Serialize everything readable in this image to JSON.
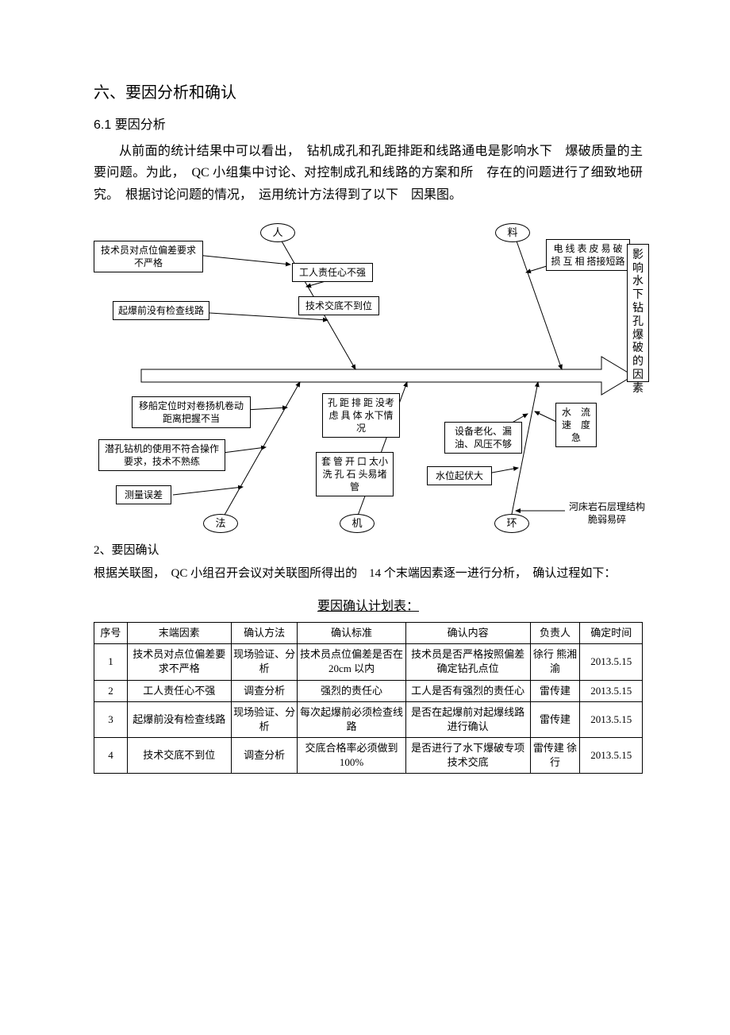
{
  "heading": "六、要因分析和确认",
  "subheading": "6.1 要因分析",
  "paragraph": "从前面的统计结果中可以看出，　钻机成孔和孔距排距和线路通电是影响水下　爆破质量的主要问题。为此，　QC 小组集中讨论、对控制成孔和线路的方案和所　存在的问题进行了细致地研究。　根据讨论问题的情况，　运用统计方法得到了以下　因果图。",
  "diagram": {
    "categories": {
      "ren": "人",
      "liao": "料",
      "fa": "法",
      "ji": "机",
      "huan": "环"
    },
    "result": "影响水下钻孔爆破的因素",
    "boxes": {
      "b1": "技术员对点位偏差要求不严格",
      "b2": "起爆前没有检查线路",
      "b3": "工人责任心不强",
      "b4": "技术交底不到位",
      "b5": "电 线 表 皮 易 破 损 互 相 搭接短路",
      "b6": "移船定位时对卷扬机卷动距离把握不当",
      "b7": "潜孔钻机的使用不符合操作要求，技术不熟练",
      "b8": "测量误差",
      "b9": "孔 距 排 距 没考 虑 具 体 水下情况",
      "b10": "套 管 开 口 太小 洗 孔 石 头易堵管",
      "b11": "设备老化、漏油、风压不够",
      "b12": "水位起伏大",
      "b13": "水　流速　度急",
      "b14": "河床岩石层理结构脆弱易碎"
    }
  },
  "sub2_num": "2、",
  "sub2_txt": "要因确认",
  "para2": "根据关联图，　QC 小组召开会议对关联图所得出的　14 个末端因素逐一进行分析，　确认过程如下：",
  "table_title": "要因确认计划表：",
  "table": {
    "headers": [
      "序号",
      "末端因素",
      "确认方法",
      "确认标准",
      "确认内容",
      "负责人",
      "确定时间"
    ],
    "rows": [
      {
        "c0": "1",
        "c1": "技术员对点位偏差要　求不严格",
        "c2": "现场验证、分析",
        "c3": "技术员点位偏差是否在　20cm 以内",
        "c4": "技术员是否严格按照偏差确定钻孔点位",
        "c5": "徐行 熊湘渝",
        "c6": "2013.5.15"
      },
      {
        "c0": "2",
        "c1": "工人责任心不强",
        "c2": "调查分析",
        "c3": "强烈的责任心",
        "c4": "工人是否有强烈的责任心",
        "c5": "雷传建",
        "c6": "2013.5.15"
      },
      {
        "c0": "3",
        "c1": "起爆前没有检查线路",
        "c2": "现场验证、分析",
        "c3": "每次起爆前必须检查线路",
        "c4": "是否在起爆前对起爆线路进行确认",
        "c5": "雷传建",
        "c6": "2013.5.15"
      },
      {
        "c0": "4",
        "c1": "技术交底不到位",
        "c2": "调查分析",
        "c3": "交底合格率必须做到100%",
        "c4": "是否进行了水下爆破专项技术交底",
        "c5": "雷传建 徐行",
        "c6": "2013.5.15"
      }
    ],
    "col_widths": [
      "40px",
      "125px",
      "80px",
      "130px",
      "150px",
      "60px",
      "75px"
    ]
  }
}
